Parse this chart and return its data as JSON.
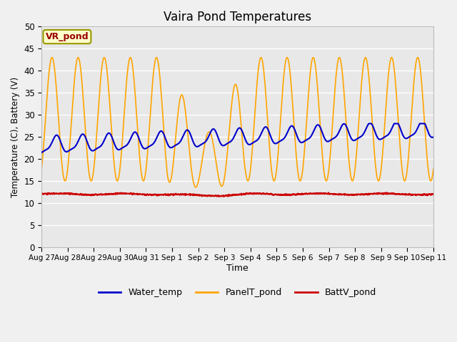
{
  "title": "Vaira Pond Temperatures",
  "xlabel": "Time",
  "ylabel": "Temperature (C), Battery (V)",
  "annotation": "VR_pond",
  "ylim": [
    0,
    50
  ],
  "yticks": [
    0,
    5,
    10,
    15,
    20,
    25,
    30,
    35,
    40,
    45,
    50
  ],
  "xtick_labels": [
    "Aug 27",
    "Aug 28",
    "Aug 29",
    "Aug 30",
    "Aug 31",
    "Sep 1",
    "Sep 2",
    "Sep 3",
    "Sep 4",
    "Sep 5",
    "Sep 6",
    "Sep 7",
    "Sep 8",
    "Sep 9",
    "Sep 10",
    "Sep 11"
  ],
  "fig_bg_color": "#f0f0f0",
  "ax_bg_color": "#e8e8e8",
  "grid_color": "#ffffff",
  "water_color": "#0000cc",
  "panel_color": "#ffa500",
  "batt_color": "#cc0000",
  "legend_labels": [
    "Water_temp",
    "PanelT_pond",
    "BattV_pond"
  ],
  "annot_text": "VR_pond",
  "annot_color": "#990000",
  "annot_bg": "#ffffcc",
  "annot_edge": "#999900"
}
